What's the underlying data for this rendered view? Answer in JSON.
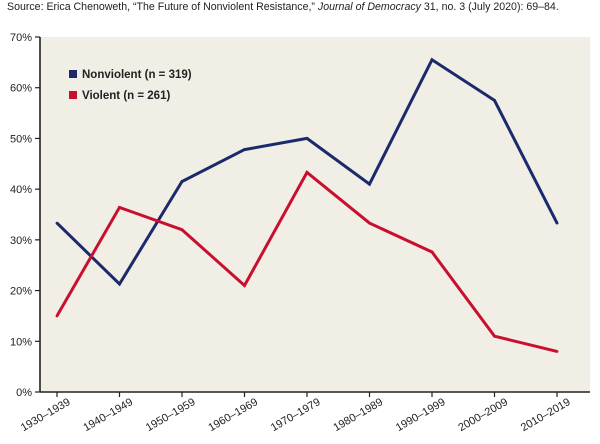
{
  "source": {
    "pre": "Source: Erica Chenoweth, “The Future of Nonviolent Resistance,” ",
    "journal": "Journal of Democracy",
    "post": " 31, no. 3 (July 2020): 69–84."
  },
  "chart_data": {
    "type": "line",
    "title": "",
    "xlabel": "",
    "ylabel": "",
    "categories": [
      "1930–1939",
      "1940–1949",
      "1950–1959",
      "1960–1969",
      "1970–1979",
      "1980–1989",
      "1990–1999",
      "2000–2009",
      "2010–2019"
    ],
    "ylim": [
      0,
      70
    ],
    "yticks": [
      0,
      10,
      20,
      30,
      40,
      50,
      60,
      70
    ],
    "ytick_labels": [
      "0%",
      "10%",
      "20%",
      "30%",
      "40%",
      "50%",
      "60%",
      "70%"
    ],
    "grid": false,
    "legend_position": "top-left",
    "background_color": "#f1eee6",
    "series": [
      {
        "name": "Nonviolent (n = 319)",
        "color": "#1b2a6b",
        "values": [
          33.3,
          21.3,
          41.5,
          47.8,
          50.0,
          41.0,
          65.5,
          57.5,
          33.3
        ]
      },
      {
        "name": "Violent (n = 261)",
        "color": "#c8102e",
        "values": [
          15.0,
          36.4,
          32.0,
          21.0,
          43.3,
          33.3,
          27.6,
          11.0,
          8.0
        ]
      }
    ]
  }
}
